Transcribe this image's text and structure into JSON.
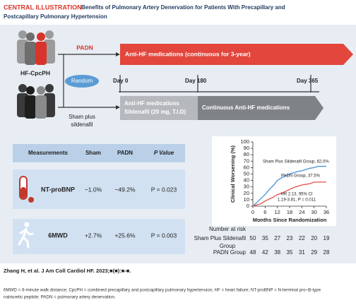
{
  "header": {
    "label": "CENTRAL ILLUSTRATION",
    "title_lines": [
      "Benefits of Pulmonary Artery Denervation for Patients With Precapillary and",
      "Postcapillary Pulmonary Hypertension"
    ]
  },
  "design": {
    "population": "HF-CpcPH",
    "padn": "PADN",
    "random": "Random",
    "sham": [
      "Sham plus",
      "sildenafil"
    ],
    "padn_arm": "Anti-HF medications (continuous for 3-year)",
    "timeline": [
      "Day 0",
      "Day 180",
      "Day 365"
    ],
    "sham_arm_first": [
      "Anti-HF medications",
      "Sildenafil (20 mg, T.I.D)"
    ],
    "sham_arm_second": "Continuous Anti-HF medications"
  },
  "table": {
    "header": [
      "Measurements",
      "Sham",
      "PADN",
      "P Value"
    ],
    "rows": [
      [
        "NT-proBNP",
        "−1.0%",
        "−49.2%",
        "P = 0.023"
      ],
      [
        "6MWD",
        "+2.7%",
        "+25.6%",
        "P = 0.003"
      ]
    ]
  },
  "chart_data": {
    "type": "line",
    "y_label": "Clinical Worsening (%)",
    "x_label": "Months Since Randomization",
    "x": [
      0,
      2,
      4,
      6,
      8,
      10,
      12,
      14,
      16,
      18,
      20,
      22,
      24,
      26,
      28,
      30,
      32,
      34,
      36
    ],
    "series": [
      {
        "name": "Sham Plus Sildenafil Group, 62.0%",
        "color": "#4a8fd6",
        "values": [
          0,
          6,
          12,
          18,
          26,
          32,
          40,
          44,
          47,
          50,
          52,
          54,
          55,
          57,
          59,
          60,
          62,
          62,
          62
        ]
      },
      {
        "name": "PADN Group, 37.5%",
        "color": "#e0524a",
        "values": [
          0,
          2,
          4,
          8,
          11,
          14,
          18,
          20,
          23,
          26,
          29,
          31,
          33,
          34,
          35,
          37.5,
          37.5,
          37.5,
          37.5
        ]
      }
    ],
    "xlim": [
      0,
      36
    ],
    "xticks": [
      0,
      6,
      12,
      18,
      24,
      30,
      36
    ],
    "ylim": [
      0,
      100
    ],
    "yticks": [
      0,
      10,
      20,
      30,
      40,
      50,
      60,
      70,
      80,
      90,
      100
    ],
    "annotation": [
      "HR 2.13, 95% CI",
      "1.19-3.81, P = 0.011"
    ],
    "risk_table": {
      "title": "Number at risk",
      "rows": [
        {
          "label": [
            "Sham Plus Sildenafil",
            "Group"
          ],
          "values": [
            50,
            35,
            27,
            23,
            22,
            20,
            19
          ]
        },
        {
          "label": [
            "PADN Group"
          ],
          "values": [
            48,
            42,
            38,
            35,
            31,
            29,
            28
          ]
        }
      ]
    }
  },
  "citation": "Zhang H, et al. J Am Coll Cardiol HF. 2023;■(■):■-■.",
  "footnote": [
    "6MWD = 6-minute walk distance; CpcPH = combined precapillary and postcapillary pulmonary hypertension; HF = heart failure; NT-proBNP = N-terminal pro–B-type",
    "natriuretic peptide; PADN = pulmonary artery denervation."
  ]
}
